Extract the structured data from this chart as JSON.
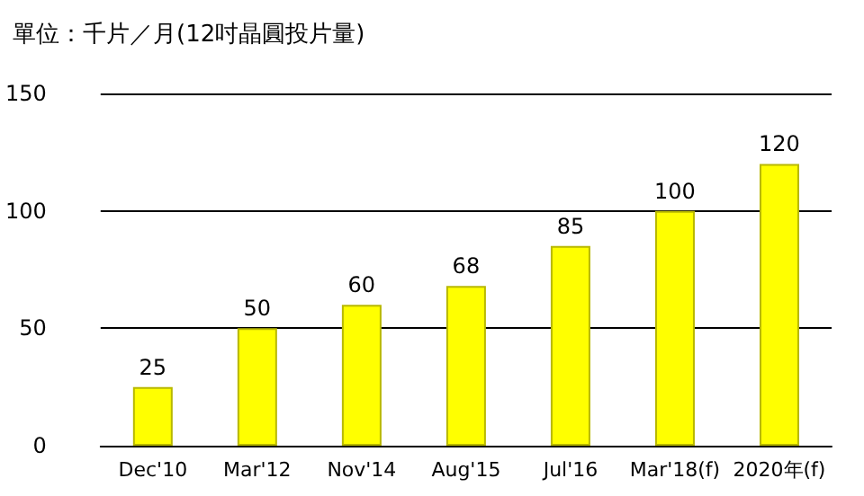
{
  "chart_data": {
    "type": "bar",
    "title": "單位：千片／月(12吋晶圓投片量)",
    "categories": [
      "Dec'10",
      "Mar'12",
      "Nov'14",
      "Aug'15",
      "Jul'16",
      "Mar'18(f)",
      "2020年(f)"
    ],
    "values": [
      25,
      50,
      60,
      68,
      85,
      100,
      120
    ],
    "color": "#ffff00",
    "ylim": [
      0,
      150
    ],
    "yticks": [
      0,
      50,
      100,
      150
    ],
    "grid": "y",
    "data_labels": true
  }
}
